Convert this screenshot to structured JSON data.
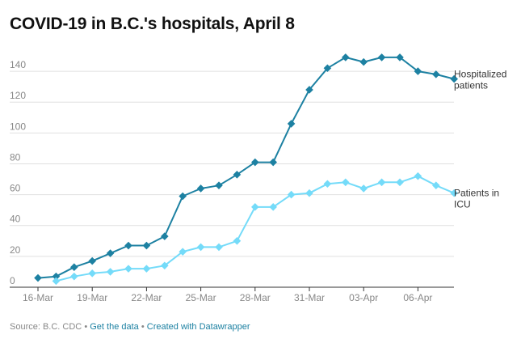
{
  "title": "COVID-19 in B.C.'s hospitals, April 8",
  "footer": {
    "source": "Source: B.C. CDC",
    "separator": "•",
    "get_data": "Get the data",
    "created_with": "Created with Datawrapper"
  },
  "colors": {
    "hospitalized": "#1d81a2",
    "icu": "#74dbf9",
    "grid": "#e0e0e0",
    "baseline": "#333333"
  },
  "chart_data": {
    "type": "line",
    "title": "COVID-19 in B.C.'s hospitals, April 8",
    "xlabel": "",
    "ylabel": "",
    "x_start": "16-Mar",
    "x": [
      "16-Mar",
      "17-Mar",
      "18-Mar",
      "19-Mar",
      "20-Mar",
      "21-Mar",
      "22-Mar",
      "23-Mar",
      "24-Mar",
      "25-Mar",
      "26-Mar",
      "27-Mar",
      "28-Mar",
      "29-Mar",
      "30-Mar",
      "31-Mar",
      "01-Apr",
      "02-Apr",
      "03-Apr",
      "04-Apr",
      "05-Apr",
      "06-Apr",
      "07-Apr",
      "08-Apr"
    ],
    "x_ticks": [
      "16-Mar",
      "19-Mar",
      "22-Mar",
      "25-Mar",
      "28-Mar",
      "31-Mar",
      "03-Apr",
      "06-Apr"
    ],
    "ylim": [
      0,
      150
    ],
    "y_ticks": [
      0,
      20,
      40,
      60,
      80,
      100,
      120,
      140
    ],
    "grid": true,
    "series": [
      {
        "name": "Hospitalized patients",
        "label_lines": [
          "Hospitalized",
          "patients"
        ],
        "values": [
          6,
          7,
          13,
          17,
          22,
          27,
          27,
          33,
          59,
          64,
          66,
          73,
          81,
          81,
          106,
          128,
          142,
          149,
          146,
          149,
          149,
          140,
          138,
          135
        ]
      },
      {
        "name": "Patients in ICU",
        "label_lines": [
          "Patients in",
          "ICU"
        ],
        "values": [
          null,
          4,
          7,
          9,
          10,
          12,
          12,
          14,
          23,
          26,
          26,
          30,
          52,
          52,
          60,
          61,
          67,
          68,
          64,
          68,
          68,
          72,
          66,
          61
        ]
      }
    ]
  }
}
